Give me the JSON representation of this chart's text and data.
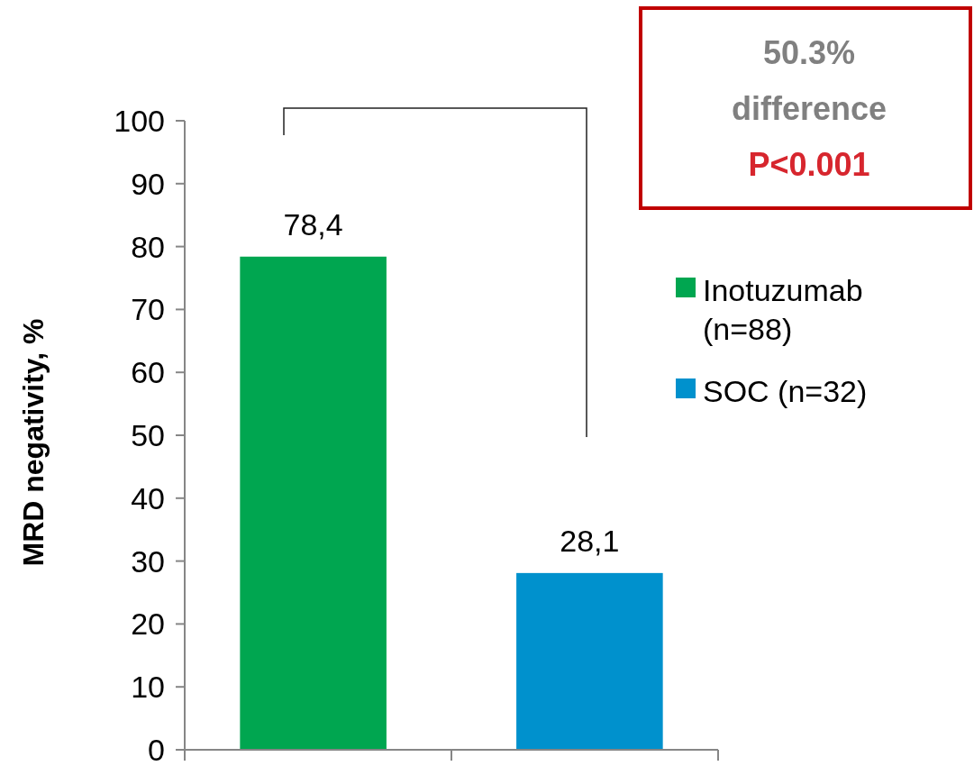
{
  "chart_data": {
    "type": "bar",
    "ylabel": "MRD negativity, %",
    "categories": [
      null,
      null
    ],
    "series": [
      {
        "name": "Inotuzumab (n=88)",
        "color": "#00a650",
        "values": [
          78.4,
          null
        ],
        "value_labels": [
          "78,4",
          null
        ]
      },
      {
        "name": "SOC (n=32)",
        "color": "#0091cd",
        "values": [
          null,
          28.1
        ],
        "value_labels": [
          null,
          "28,1"
        ]
      }
    ],
    "ylim": [
      0,
      100
    ],
    "yticks": [
      0,
      10,
      20,
      30,
      40,
      50,
      60,
      70,
      80,
      90,
      100
    ],
    "grid": false,
    "legend": "right",
    "annotations": [
      "50.3% difference",
      "P<0.001"
    ]
  }
}
